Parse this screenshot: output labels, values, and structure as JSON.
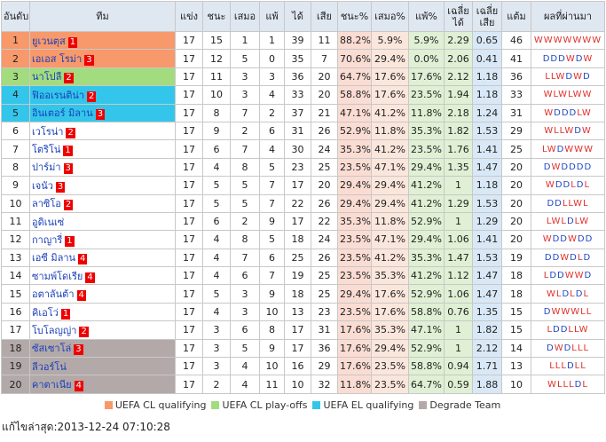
{
  "table": {
    "headers": [
      "อันดับ",
      "ทีม",
      "แข่ง",
      "ชนะ",
      "เสมอ",
      "แพ้",
      "ได้",
      "เสีย",
      "ชนะ%",
      "เสมอ%",
      "แพ้%",
      "เฉลี่ยได้",
      "เฉลี่ยเสีย",
      "แต้ม",
      "ผลที่ผ่านมา"
    ],
    "rows": [
      {
        "rank": "1",
        "team": "ยูเวนตุส",
        "badge": "1",
        "zone": 0,
        "stats": [
          "17",
          "15",
          "1",
          "1",
          "39",
          "11",
          "88.2%",
          "5.9%",
          "5.9%",
          "2.29",
          "0.65",
          "46"
        ],
        "form": [
          "W",
          "W",
          "W",
          "W",
          "W",
          "W",
          "W"
        ]
      },
      {
        "rank": "2",
        "team": "เอเอส โรม่า",
        "badge": "3",
        "zone": 0,
        "stats": [
          "17",
          "12",
          "5",
          "0",
          "35",
          "7",
          "70.6%",
          "29.4%",
          "0.0%",
          "2.06",
          "0.41",
          "41"
        ],
        "form": [
          "D",
          "D",
          "D",
          "W",
          "D",
          "W"
        ]
      },
      {
        "rank": "3",
        "team": "นาโปลี",
        "badge": "2",
        "zone": 1,
        "stats": [
          "17",
          "11",
          "3",
          "3",
          "36",
          "20",
          "64.7%",
          "17.6%",
          "17.6%",
          "2.12",
          "1.18",
          "36"
        ],
        "form": [
          "L",
          "L",
          "W",
          "D",
          "W",
          "D"
        ]
      },
      {
        "rank": "4",
        "team": "ฟิออเรนติน่า",
        "badge": "2",
        "zone": 2,
        "stats": [
          "17",
          "10",
          "3",
          "4",
          "33",
          "20",
          "58.8%",
          "17.6%",
          "23.5%",
          "1.94",
          "1.18",
          "33"
        ],
        "form": [
          "W",
          "L",
          "W",
          "L",
          "W",
          "W"
        ]
      },
      {
        "rank": "5",
        "team": "อินเตอร์ มิลาน",
        "badge": "3",
        "zone": 2,
        "stats": [
          "17",
          "8",
          "7",
          "2",
          "37",
          "21",
          "47.1%",
          "41.2%",
          "11.8%",
          "2.18",
          "1.24",
          "31"
        ],
        "form": [
          "W",
          "D",
          "D",
          "D",
          "L",
          "W"
        ]
      },
      {
        "rank": "6",
        "team": "เวโรน่า",
        "badge": "2",
        "stats": [
          "17",
          "9",
          "2",
          "6",
          "31",
          "26",
          "52.9%",
          "11.8%",
          "35.3%",
          "1.82",
          "1.53",
          "29"
        ],
        "form": [
          "W",
          "L",
          "L",
          "W",
          "D",
          "W"
        ]
      },
      {
        "rank": "7",
        "team": "โตริโน่",
        "badge": "1",
        "stats": [
          "17",
          "6",
          "7",
          "4",
          "30",
          "24",
          "35.3%",
          "41.2%",
          "23.5%",
          "1.76",
          "1.41",
          "25"
        ],
        "form": [
          "L",
          "W",
          "D",
          "W",
          "W",
          "W"
        ]
      },
      {
        "rank": "8",
        "team": "ปาร์ม่า",
        "badge": "3",
        "stats": [
          "17",
          "4",
          "8",
          "5",
          "23",
          "25",
          "23.5%",
          "47.1%",
          "29.4%",
          "1.35",
          "1.47",
          "20"
        ],
        "form": [
          "D",
          "W",
          "D",
          "D",
          "D",
          "D"
        ]
      },
      {
        "rank": "9",
        "team": "เจนัว",
        "badge": "3",
        "stats": [
          "17",
          "5",
          "5",
          "7",
          "17",
          "20",
          "29.4%",
          "29.4%",
          "41.2%",
          "1",
          "1.18",
          "20"
        ],
        "form": [
          "W",
          "D",
          "D",
          "L",
          "D",
          "L"
        ]
      },
      {
        "rank": "10",
        "team": "ลาซิโอ",
        "badge": "2",
        "stats": [
          "17",
          "5",
          "5",
          "7",
          "22",
          "26",
          "29.4%",
          "29.4%",
          "41.2%",
          "1.29",
          "1.53",
          "20"
        ],
        "form": [
          "D",
          "D",
          "L",
          "L",
          "W",
          "L"
        ]
      },
      {
        "rank": "11",
        "team": "อูดิเนเซ่",
        "stats": [
          "17",
          "6",
          "2",
          "9",
          "17",
          "22",
          "35.3%",
          "11.8%",
          "52.9%",
          "1",
          "1.29",
          "20"
        ],
        "form": [
          "L",
          "W",
          "L",
          "D",
          "L",
          "W"
        ]
      },
      {
        "rank": "12",
        "team": "กาญารี่",
        "badge": "1",
        "stats": [
          "17",
          "4",
          "8",
          "5",
          "18",
          "24",
          "23.5%",
          "47.1%",
          "29.4%",
          "1.06",
          "1.41",
          "20"
        ],
        "form": [
          "W",
          "D",
          "D",
          "W",
          "D",
          "D"
        ]
      },
      {
        "rank": "13",
        "team": "เอซี มิลาน",
        "badge": "4",
        "stats": [
          "17",
          "4",
          "7",
          "6",
          "25",
          "26",
          "23.5%",
          "41.2%",
          "35.3%",
          "1.47",
          "1.53",
          "19"
        ],
        "form": [
          "D",
          "D",
          "W",
          "D",
          "L",
          "D"
        ]
      },
      {
        "rank": "14",
        "team": "ซามพ์โดเรีย",
        "badge": "4",
        "stats": [
          "17",
          "4",
          "6",
          "7",
          "19",
          "25",
          "23.5%",
          "35.3%",
          "41.2%",
          "1.12",
          "1.47",
          "18"
        ],
        "form": [
          "L",
          "D",
          "D",
          "W",
          "W",
          "D"
        ]
      },
      {
        "rank": "15",
        "team": "อตาลันต้า",
        "badge": "4",
        "stats": [
          "17",
          "5",
          "3",
          "9",
          "18",
          "25",
          "29.4%",
          "17.6%",
          "52.9%",
          "1.06",
          "1.47",
          "18"
        ],
        "form": [
          "W",
          "L",
          "D",
          "L",
          "D",
          "L"
        ]
      },
      {
        "rank": "16",
        "team": "คิเอโว่",
        "badge": "1",
        "stats": [
          "17",
          "4",
          "3",
          "10",
          "13",
          "23",
          "23.5%",
          "17.6%",
          "58.8%",
          "0.76",
          "1.35",
          "15"
        ],
        "form": [
          "D",
          "W",
          "W",
          "W",
          "L",
          "L"
        ]
      },
      {
        "rank": "17",
        "team": "โบโลญญ่า",
        "badge": "2",
        "stats": [
          "17",
          "3",
          "6",
          "8",
          "17",
          "31",
          "17.6%",
          "35.3%",
          "47.1%",
          "1",
          "1.82",
          "15"
        ],
        "form": [
          "L",
          "D",
          "D",
          "L",
          "L",
          "W"
        ]
      },
      {
        "rank": "18",
        "team": "ซัสเซาโล่",
        "badge": "3",
        "zone": 3,
        "stats": [
          "17",
          "3",
          "5",
          "9",
          "17",
          "36",
          "17.6%",
          "29.4%",
          "52.9%",
          "1",
          "2.12",
          "14"
        ],
        "form": [
          "D",
          "W",
          "D",
          "L",
          "L",
          "L"
        ]
      },
      {
        "rank": "19",
        "team": "ลีวอร์โน่",
        "zone": 3,
        "stats": [
          "17",
          "3",
          "4",
          "10",
          "16",
          "29",
          "17.6%",
          "23.5%",
          "58.8%",
          "0.94",
          "1.71",
          "13"
        ],
        "form": [
          "L",
          "L",
          "L",
          "D",
          "L",
          "L"
        ]
      },
      {
        "rank": "20",
        "team": "คาตาเนีย",
        "badge": "4",
        "zone": 3,
        "stats": [
          "17",
          "2",
          "4",
          "11",
          "10",
          "32",
          "11.8%",
          "23.5%",
          "64.7%",
          "0.59",
          "1.88",
          "10"
        ],
        "form": [
          "W",
          "L",
          "L",
          "L",
          "D",
          "L"
        ]
      }
    ]
  },
  "legend": [
    {
      "label": "UEFA CL qualifying",
      "color": "#f7996b"
    },
    {
      "label": "UEFA CL play-offs",
      "color": "#a3dc7e"
    },
    {
      "label": "UEFA EL qualifying",
      "color": "#33c6ea"
    },
    {
      "label": "Degrade Team",
      "color": "#b3a9a9"
    }
  ],
  "footer": "แก้ไขล่าสุด:2013-12-24 07:10:28"
}
